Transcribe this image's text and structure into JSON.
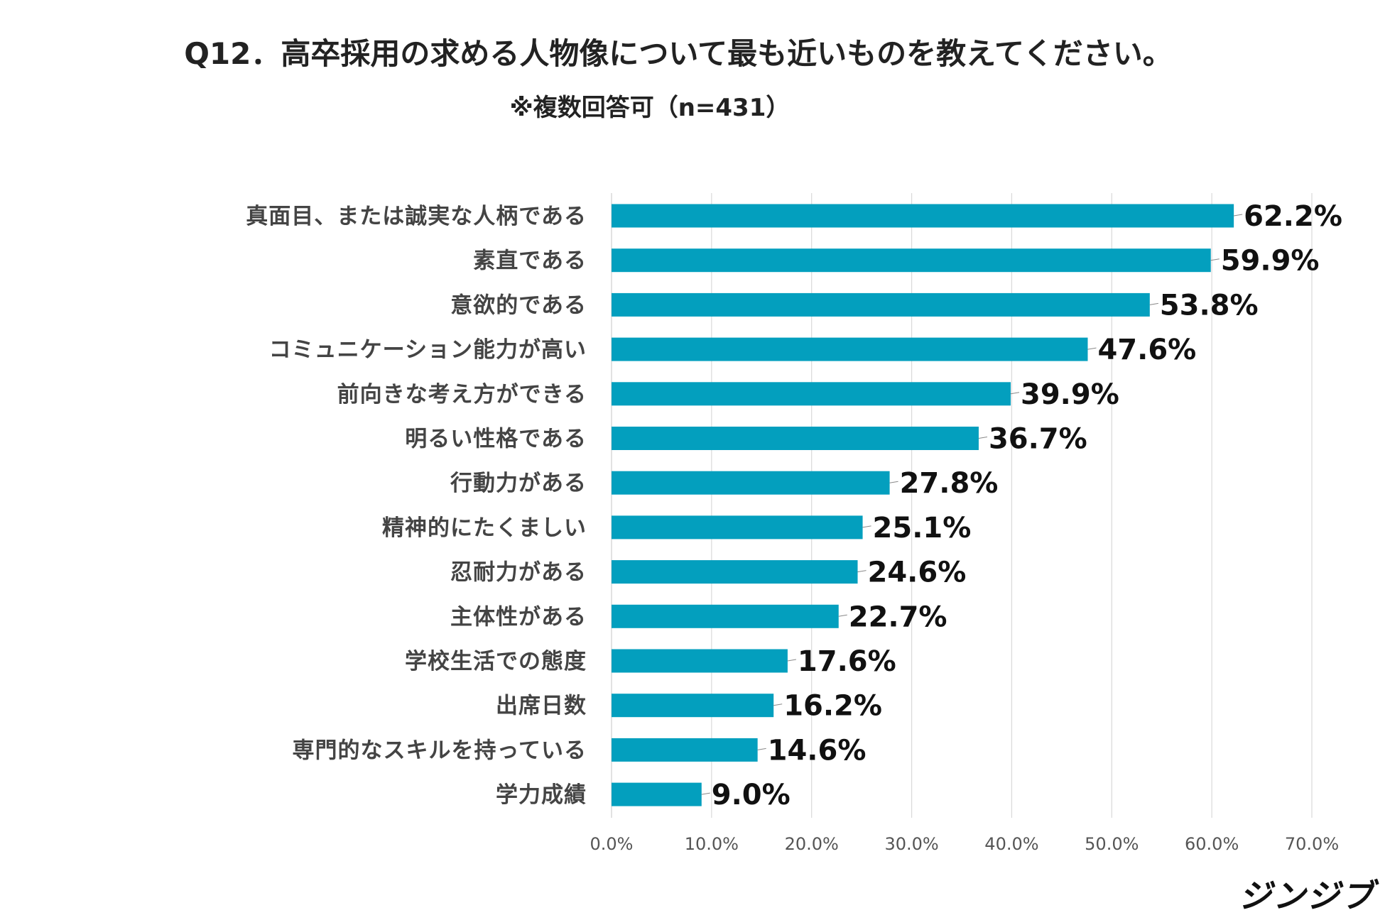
{
  "chart_data": {
    "type": "bar",
    "orientation": "horizontal",
    "title": "Q12．高卒採用の求める人物像について最も近いものを教えてください。",
    "subtitle": "※複数回答可（n=431）",
    "categories": [
      "真面目、または誠実な人柄である",
      "素直である",
      "意欲的である",
      "コミュニケーション能力が高い",
      "前向きな考え方ができる",
      "明るい性格である",
      "行動力がある",
      "精神的にたくましい",
      "忍耐力がある",
      "主体性がある",
      "学校生活での態度",
      "出席日数",
      "専門的なスキルを持っている",
      "学力成績"
    ],
    "values": [
      62.2,
      59.9,
      53.8,
      47.6,
      39.9,
      36.7,
      27.8,
      25.1,
      24.6,
      22.7,
      17.6,
      16.2,
      14.6,
      9.0
    ],
    "value_labels": [
      "62.2%",
      "59.9%",
      "53.8%",
      "47.6%",
      "39.9%",
      "36.7%",
      "27.8%",
      "25.1%",
      "24.6%",
      "22.7%",
      "17.6%",
      "16.2%",
      "14.6%",
      "9.0%"
    ],
    "xlim": [
      0,
      70
    ],
    "x_ticks": [
      0,
      10,
      20,
      30,
      40,
      50,
      60,
      70
    ],
    "x_tick_labels": [
      "0.0%",
      "10.0%",
      "20.0%",
      "30.0%",
      "40.0%",
      "50.0%",
      "60.0%",
      "70.0%"
    ],
    "grid": true,
    "bar_color": "#039fbe",
    "grid_color": "#d9d9d9"
  },
  "brand": "ジンジブ"
}
